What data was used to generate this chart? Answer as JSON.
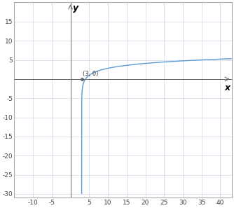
{
  "title": "",
  "xlabel": "x",
  "ylabel": "y",
  "xlim": [
    -15,
    43
  ],
  "ylim": [
    -31,
    20
  ],
  "xticks": [
    -10,
    -5,
    5,
    10,
    15,
    20,
    25,
    30,
    35,
    40
  ],
  "yticks": [
    -30,
    -25,
    -20,
    -15,
    -10,
    -5,
    5,
    10,
    15
  ],
  "point_label": "(3, 0)",
  "point_x": 3,
  "point_y": 0,
  "curve_color": "#5b9bd5",
  "background_color": "#ffffff",
  "grid_color": "#d0d8e8",
  "axis_color": "#666666",
  "border_color": "#aaaaaa",
  "label_fontsize": 9,
  "tick_fontsize": 6.5,
  "figsize": [
    3.34,
    2.97
  ],
  "dpi": 100
}
